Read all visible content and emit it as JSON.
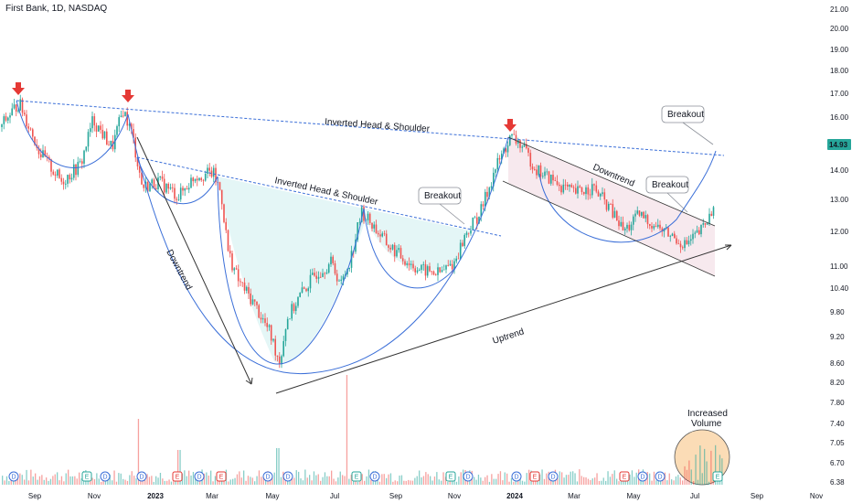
{
  "header": {
    "symbol_line": "First Bank, 1D, NASDAQ"
  },
  "colors": {
    "up": "#26a69a",
    "down": "#ef5350",
    "pattern_line": "#3b6fd8",
    "trend_line": "#333333",
    "head_shoulder_fill": "#e4f6f6",
    "channel_fill": "#f7e9ee",
    "volume_circle_fill": "#fbdcb6",
    "arrow": "#e53935"
  },
  "annotations": {
    "ihs_top": "Inverted Head & Shoulder",
    "ihs_mid": "Inverted Head & Shoulder",
    "downtrend_left": "Downtrend",
    "downtrend_right": "Downtrend",
    "uptrend": "Uptrend",
    "breakout_1": "Breakout",
    "breakout_2": "Breakout",
    "breakout_3": "Breakout",
    "increased_volume_1": "Increased",
    "increased_volume_2": "Volume"
  },
  "price_axis": {
    "ticks": [
      "21.00",
      "20.00",
      "19.00",
      "18.00",
      "17.00",
      "16.00",
      "15.00",
      "14.00",
      "13.00",
      "12.00",
      "11.00",
      "10.40",
      "9.80",
      "9.20",
      "8.60",
      "8.20",
      "7.80",
      "7.40",
      "7.05",
      "6.70",
      "6.38"
    ],
    "current_price": "14.93"
  },
  "time_axis": {
    "ticks": [
      "Sep",
      "Nov",
      "2023",
      "Mar",
      "May",
      "Jul",
      "Sep",
      "Nov",
      "2024",
      "Mar",
      "May",
      "Jul",
      "Sep",
      "Nov"
    ]
  },
  "event_markers": [
    {
      "label": "D",
      "kind": "dividend"
    },
    {
      "label": "E",
      "kind": "earnings"
    },
    {
      "label": "D",
      "kind": "dividend"
    },
    {
      "label": "D",
      "kind": "dividend"
    },
    {
      "label": "E",
      "kind": "earnings"
    },
    {
      "label": "D",
      "kind": "dividend"
    },
    {
      "label": "E",
      "kind": "earnings"
    },
    {
      "label": "D",
      "kind": "dividend"
    },
    {
      "label": "D",
      "kind": "dividend"
    },
    {
      "label": "E",
      "kind": "earnings"
    },
    {
      "label": "D",
      "kind": "dividend"
    },
    {
      "label": "E",
      "kind": "earnings"
    },
    {
      "label": "D",
      "kind": "dividend"
    },
    {
      "label": "D",
      "kind": "dividend"
    },
    {
      "label": "E",
      "kind": "earnings"
    },
    {
      "label": "D",
      "kind": "dividend"
    },
    {
      "label": "E",
      "kind": "earnings"
    },
    {
      "label": "D",
      "kind": "dividend"
    },
    {
      "label": "D",
      "kind": "dividend"
    },
    {
      "label": "E",
      "kind": "earnings"
    }
  ],
  "chart_data": {
    "type": "line",
    "title": "",
    "symbol": "First Bank, 1D, NASDAQ",
    "scale": "log",
    "ylim": [
      6.38,
      21.0
    ],
    "x_range": [
      "2022-08-01",
      "2024-11-20"
    ],
    "price_path": {
      "x": [
        "2022-08-01",
        "2022-08-20",
        "2022-09-10",
        "2022-10-01",
        "2022-10-20",
        "2022-11-01",
        "2022-11-20",
        "2022-12-01",
        "2022-12-10",
        "2022-12-20",
        "2023-01-05",
        "2023-01-25",
        "2023-02-10",
        "2023-02-28",
        "2023-03-08",
        "2023-03-15",
        "2023-03-25",
        "2023-04-10",
        "2023-04-25",
        "2023-05-05",
        "2023-05-12",
        "2023-05-25",
        "2023-06-10",
        "2023-06-25",
        "2023-07-05",
        "2023-07-15",
        "2023-07-25",
        "2023-08-05",
        "2023-08-20",
        "2023-09-05",
        "2023-09-20",
        "2023-10-10",
        "2023-10-25",
        "2023-11-05",
        "2023-11-20",
        "2023-12-05",
        "2023-12-20",
        "2023-12-28",
        "2024-01-15",
        "2024-02-01",
        "2024-02-20",
        "2024-03-10",
        "2024-03-25",
        "2024-04-10",
        "2024-04-25",
        "2024-05-10",
        "2024-05-25",
        "2024-06-10",
        "2024-06-25",
        "2024-07-05",
        "2024-07-15",
        "2024-07-22"
      ],
      "y": [
        15.6,
        16.6,
        14.6,
        13.6,
        14.2,
        15.9,
        14.8,
        16.3,
        15.3,
        13.4,
        13.6,
        13.1,
        13.8,
        13.9,
        13.2,
        11.4,
        10.6,
        10.0,
        9.3,
        8.62,
        9.6,
        10.2,
        10.8,
        11.1,
        10.5,
        11.3,
        12.6,
        12.2,
        11.6,
        11.2,
        10.9,
        10.8,
        11.1,
        11.9,
        12.6,
        14.1,
        15.2,
        15.0,
        14.0,
        13.6,
        13.2,
        13.4,
        12.8,
        12.0,
        12.5,
        12.2,
        11.9,
        11.6,
        12.0,
        12.5,
        14.1,
        14.93
      ]
    },
    "marked_highs": [
      {
        "x": "2022-08-20",
        "y": 16.6
      },
      {
        "x": "2022-11-25",
        "y": 16.2
      },
      {
        "x": "2023-12-28",
        "y": 15.0
      }
    ],
    "volume_spikes": [
      {
        "x": "2022-12-05",
        "level": "high"
      },
      {
        "x": "2023-07-10",
        "level": "very high"
      },
      {
        "x": "2024-07-10",
        "level": "increased"
      }
    ]
  }
}
